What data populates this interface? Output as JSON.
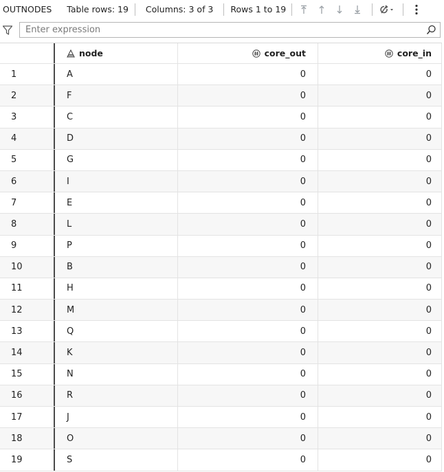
{
  "toolbar": {
    "table_name": "OUTNODES",
    "table_rows": "Table rows: 19",
    "columns": "Columns: 3 of 3",
    "rows_range": "Rows 1 to 19",
    "icons": [
      "first-page-icon",
      "prev-page-icon",
      "next-page-icon",
      "last-page-icon",
      "refresh-icon",
      "more-options-icon"
    ]
  },
  "filter": {
    "placeholder": "Enter expression",
    "value": ""
  },
  "columns": [
    {
      "label": "node",
      "type": "character",
      "icon": "character-type-icon"
    },
    {
      "label": "core_out",
      "type": "numeric",
      "icon": "numeric-type-icon"
    },
    {
      "label": "core_in",
      "type": "numeric",
      "icon": "numeric-type-icon"
    }
  ],
  "rows": [
    {
      "idx": "1",
      "node": "A",
      "core_out": "0",
      "core_in": "0"
    },
    {
      "idx": "2",
      "node": "F",
      "core_out": "0",
      "core_in": "0"
    },
    {
      "idx": "3",
      "node": "C",
      "core_out": "0",
      "core_in": "0"
    },
    {
      "idx": "4",
      "node": "D",
      "core_out": "0",
      "core_in": "0"
    },
    {
      "idx": "5",
      "node": "G",
      "core_out": "0",
      "core_in": "0"
    },
    {
      "idx": "6",
      "node": "I",
      "core_out": "0",
      "core_in": "0"
    },
    {
      "idx": "7",
      "node": "E",
      "core_out": "0",
      "core_in": "0"
    },
    {
      "idx": "8",
      "node": "L",
      "core_out": "0",
      "core_in": "0"
    },
    {
      "idx": "9",
      "node": "P",
      "core_out": "0",
      "core_in": "0"
    },
    {
      "idx": "10",
      "node": "B",
      "core_out": "0",
      "core_in": "0"
    },
    {
      "idx": "11",
      "node": "H",
      "core_out": "0",
      "core_in": "0"
    },
    {
      "idx": "12",
      "node": "M",
      "core_out": "0",
      "core_in": "0"
    },
    {
      "idx": "13",
      "node": "Q",
      "core_out": "0",
      "core_in": "0"
    },
    {
      "idx": "14",
      "node": "K",
      "core_out": "0",
      "core_in": "0"
    },
    {
      "idx": "15",
      "node": "N",
      "core_out": "0",
      "core_in": "0"
    },
    {
      "idx": "16",
      "node": "R",
      "core_out": "0",
      "core_in": "0"
    },
    {
      "idx": "17",
      "node": "J",
      "core_out": "0",
      "core_in": "0"
    },
    {
      "idx": "18",
      "node": "O",
      "core_out": "0",
      "core_in": "0"
    },
    {
      "idx": "19",
      "node": "S",
      "core_out": "0",
      "core_in": "0"
    }
  ],
  "colors": {
    "row_alt": "#f7f7f7",
    "grid_line": "#e3e3e3",
    "icon_gray": "#9aa0a6"
  }
}
